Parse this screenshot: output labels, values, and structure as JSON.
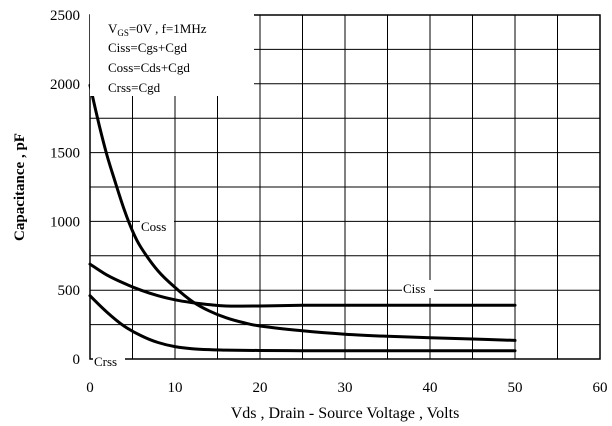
{
  "chart_data": {
    "type": "line",
    "xlabel": "Vds , Drain - Source Voltage , Volts",
    "ylabel": "Capacitance , pF",
    "xlim": [
      0,
      60
    ],
    "ylim": [
      0,
      2500
    ],
    "x_ticks": [
      0,
      10,
      20,
      30,
      40,
      50,
      60
    ],
    "y_ticks": [
      0,
      500,
      1000,
      1500,
      2000,
      2500
    ],
    "x_tick_labels": [
      "0",
      "10",
      "20",
      "30",
      "40",
      "50",
      "60"
    ],
    "y_tick_labels": [
      "0",
      "500",
      "1000",
      "1500",
      "2000",
      "2500"
    ],
    "grid": true,
    "annotations": {
      "condition_prefix": "V",
      "condition_sub": "GS",
      "condition_suffix": "=0V , f=1MHz",
      "lines": [
        "Ciss=Cgs+Cgd",
        "Coss=Cds+Cgd",
        "Crss=Cgd"
      ]
    },
    "series": [
      {
        "name": "Ciss",
        "x": [
          0,
          2,
          4,
          6,
          8,
          10,
          12,
          14,
          16,
          20,
          25,
          30,
          35,
          40,
          45,
          50
        ],
        "values": [
          690,
          610,
          550,
          500,
          460,
          430,
          410,
          395,
          385,
          385,
          390,
          390,
          390,
          390,
          390,
          390
        ]
      },
      {
        "name": "Coss",
        "x": [
          0,
          1,
          2,
          3,
          4,
          5,
          6,
          8,
          10,
          12,
          14,
          16,
          18,
          20,
          25,
          30,
          35,
          40,
          45,
          50
        ],
        "values": [
          1990,
          1720,
          1480,
          1280,
          1090,
          930,
          810,
          640,
          520,
          420,
          350,
          300,
          265,
          240,
          205,
          180,
          165,
          155,
          145,
          135
        ]
      },
      {
        "name": "Crss",
        "x": [
          0,
          2,
          4,
          6,
          8,
          10,
          12,
          14,
          16,
          20,
          25,
          30,
          40,
          50
        ],
        "values": [
          460,
          340,
          240,
          170,
          120,
          90,
          75,
          68,
          65,
          62,
          60,
          60,
          60,
          60
        ]
      }
    ]
  }
}
